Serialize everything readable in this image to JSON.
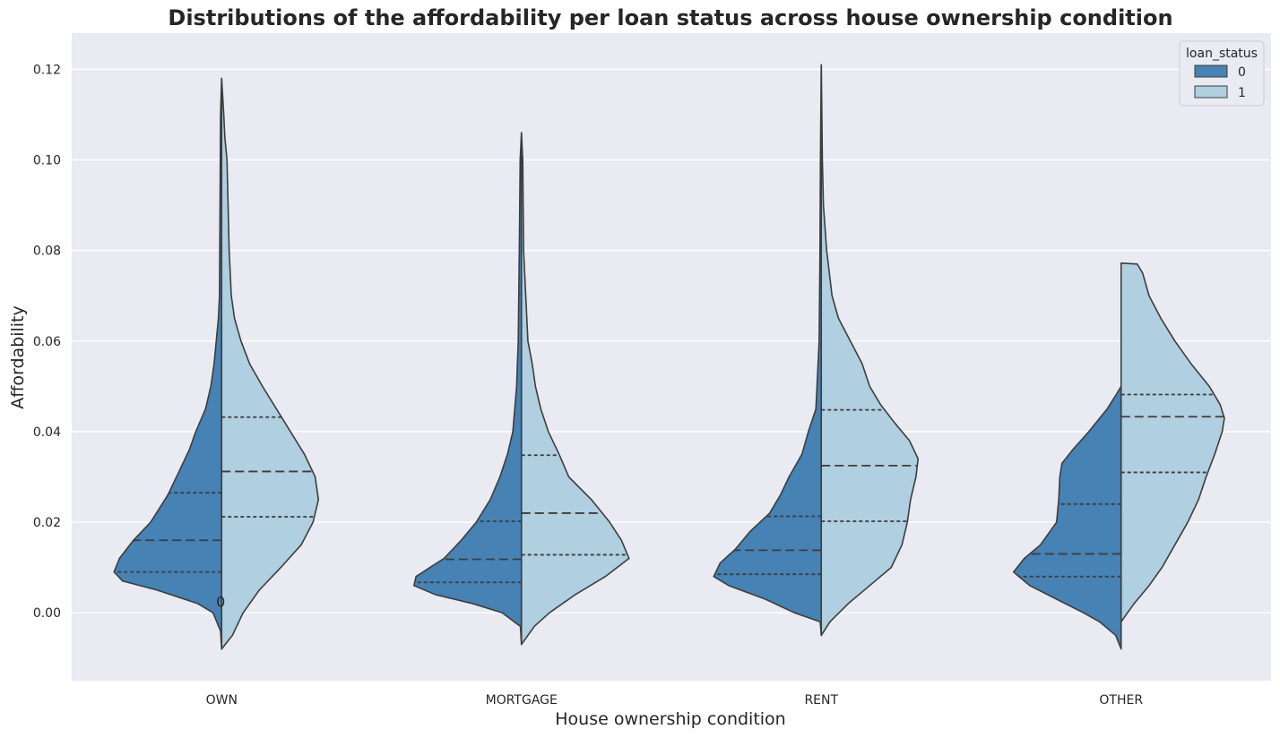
{
  "chart_data": {
    "type": "violin",
    "title": "Distributions of the affordability per loan status across house ownership condition",
    "xlabel": "House ownership condition",
    "ylabel": "Affordability",
    "categories": [
      "OWN",
      "MORTGAGE",
      "RENT",
      "OTHER"
    ],
    "ylim": [
      -0.015,
      0.128
    ],
    "yticks": [
      0.0,
      0.02,
      0.04,
      0.06,
      0.08,
      0.1,
      0.12
    ],
    "ytick_labels": [
      "0.00",
      "0.02",
      "0.04",
      "0.06",
      "0.08",
      "0.10",
      "0.12"
    ],
    "grid": true,
    "legend": {
      "title": "loan_status",
      "position": "top-right",
      "entries": [
        "0",
        "1"
      ]
    },
    "colors": {
      "0": "#4682b4",
      "1": "#b0cfe0",
      "background": "#eaeaf2",
      "grid": "#ffffff",
      "outline": "#3d3d3d"
    },
    "annotations": [
      {
        "text": "0",
        "category": "OWN",
        "y": 0.0025
      }
    ],
    "series": [
      {
        "name": "0",
        "side": "left",
        "groups": [
          {
            "category": "OWN",
            "quartiles": [
              0.009,
              0.016,
              0.0265
            ],
            "profile": [
              [
                -0.008,
                0.0
              ],
              [
                -0.004,
                0.01
              ],
              [
                0.0,
                0.08
              ],
              [
                0.002,
                0.22
              ],
              [
                0.005,
                0.6
              ],
              [
                0.007,
                0.92
              ],
              [
                0.009,
                1.0
              ],
              [
                0.012,
                0.95
              ],
              [
                0.016,
                0.82
              ],
              [
                0.02,
                0.66
              ],
              [
                0.026,
                0.5
              ],
              [
                0.031,
                0.4
              ],
              [
                0.036,
                0.3
              ],
              [
                0.04,
                0.24
              ],
              [
                0.045,
                0.15
              ],
              [
                0.05,
                0.1
              ],
              [
                0.055,
                0.07
              ],
              [
                0.06,
                0.05
              ],
              [
                0.065,
                0.03
              ],
              [
                0.07,
                0.02
              ],
              [
                0.09,
                0.015
              ],
              [
                0.11,
                0.01
              ],
              [
                0.118,
                0.0
              ]
            ]
          },
          {
            "category": "MORTGAGE",
            "quartiles": [
              0.0067,
              0.0118,
              0.0202
            ],
            "profile": [
              [
                -0.007,
                0.0
              ],
              [
                -0.003,
                0.01
              ],
              [
                0.0,
                0.18
              ],
              [
                0.002,
                0.45
              ],
              [
                0.004,
                0.8
              ],
              [
                0.006,
                1.0
              ],
              [
                0.008,
                0.98
              ],
              [
                0.01,
                0.85
              ],
              [
                0.012,
                0.72
              ],
              [
                0.016,
                0.56
              ],
              [
                0.02,
                0.42
              ],
              [
                0.025,
                0.29
              ],
              [
                0.03,
                0.2
              ],
              [
                0.035,
                0.13
              ],
              [
                0.04,
                0.08
              ],
              [
                0.05,
                0.045
              ],
              [
                0.06,
                0.03
              ],
              [
                0.08,
                0.02
              ],
              [
                0.1,
                0.012
              ],
              [
                0.106,
                0.0
              ]
            ]
          },
          {
            "category": "RENT",
            "quartiles": [
              0.0085,
              0.0138,
              0.0213
            ],
            "profile": [
              [
                -0.005,
                0.0
              ],
              [
                -0.002,
                0.01
              ],
              [
                0.0,
                0.25
              ],
              [
                0.003,
                0.52
              ],
              [
                0.006,
                0.86
              ],
              [
                0.008,
                1.0
              ],
              [
                0.011,
                0.94
              ],
              [
                0.014,
                0.8
              ],
              [
                0.018,
                0.66
              ],
              [
                0.022,
                0.48
              ],
              [
                0.026,
                0.38
              ],
              [
                0.03,
                0.3
              ],
              [
                0.035,
                0.18
              ],
              [
                0.04,
                0.12
              ],
              [
                0.045,
                0.05
              ],
              [
                0.06,
                0.02
              ],
              [
                0.08,
                0.012
              ],
              [
                0.1,
                0.008
              ],
              [
                0.121,
                0.0
              ]
            ]
          },
          {
            "category": "OTHER",
            "quartiles": [
              0.008,
              0.013,
              0.024
            ],
            "profile": [
              [
                -0.008,
                0.0
              ],
              [
                -0.005,
                0.05
              ],
              [
                -0.002,
                0.2
              ],
              [
                0.0,
                0.35
              ],
              [
                0.003,
                0.6
              ],
              [
                0.006,
                0.85
              ],
              [
                0.009,
                1.0
              ],
              [
                0.012,
                0.9
              ],
              [
                0.015,
                0.75
              ],
              [
                0.02,
                0.6
              ],
              [
                0.025,
                0.58
              ],
              [
                0.03,
                0.57
              ],
              [
                0.033,
                0.55
              ],
              [
                0.036,
                0.45
              ],
              [
                0.04,
                0.3
              ],
              [
                0.045,
                0.13
              ],
              [
                0.048,
                0.05
              ],
              [
                0.05,
                0.0
              ]
            ]
          }
        ]
      },
      {
        "name": "1",
        "side": "right",
        "groups": [
          {
            "category": "OWN",
            "quartiles": [
              0.0212,
              0.0312,
              0.0432
            ],
            "profile": [
              [
                -0.008,
                0.0
              ],
              [
                -0.005,
                0.1
              ],
              [
                0.0,
                0.2
              ],
              [
                0.005,
                0.35
              ],
              [
                0.01,
                0.55
              ],
              [
                0.015,
                0.74
              ],
              [
                0.02,
                0.85
              ],
              [
                0.025,
                0.9
              ],
              [
                0.03,
                0.87
              ],
              [
                0.035,
                0.77
              ],
              [
                0.04,
                0.64
              ],
              [
                0.045,
                0.51
              ],
              [
                0.05,
                0.38
              ],
              [
                0.055,
                0.26
              ],
              [
                0.06,
                0.18
              ],
              [
                0.065,
                0.12
              ],
              [
                0.07,
                0.09
              ],
              [
                0.08,
                0.07
              ],
              [
                0.09,
                0.06
              ],
              [
                0.1,
                0.05
              ],
              [
                0.105,
                0.03
              ],
              [
                0.11,
                0.02
              ],
              [
                0.118,
                0.0
              ]
            ]
          },
          {
            "category": "MORTGAGE",
            "quartiles": [
              0.0128,
              0.022,
              0.0348
            ],
            "profile": [
              [
                -0.007,
                0.0
              ],
              [
                -0.003,
                0.12
              ],
              [
                0.0,
                0.26
              ],
              [
                0.004,
                0.5
              ],
              [
                0.008,
                0.78
              ],
              [
                0.012,
                1.0
              ],
              [
                0.016,
                0.93
              ],
              [
                0.02,
                0.82
              ],
              [
                0.025,
                0.65
              ],
              [
                0.03,
                0.44
              ],
              [
                0.035,
                0.35
              ],
              [
                0.04,
                0.25
              ],
              [
                0.045,
                0.18
              ],
              [
                0.05,
                0.13
              ],
              [
                0.055,
                0.1
              ],
              [
                0.06,
                0.06
              ],
              [
                0.07,
                0.04
              ],
              [
                0.08,
                0.02
              ],
              [
                0.1,
                0.012
              ],
              [
                0.106,
                0.0
              ]
            ]
          },
          {
            "category": "RENT",
            "quartiles": [
              0.0202,
              0.0325,
              0.0448
            ],
            "profile": [
              [
                -0.005,
                0.0
              ],
              [
                -0.002,
                0.08
              ],
              [
                0.002,
                0.25
              ],
              [
                0.006,
                0.45
              ],
              [
                0.01,
                0.65
              ],
              [
                0.015,
                0.75
              ],
              [
                0.02,
                0.8
              ],
              [
                0.025,
                0.83
              ],
              [
                0.03,
                0.88
              ],
              [
                0.034,
                0.9
              ],
              [
                0.038,
                0.82
              ],
              [
                0.042,
                0.68
              ],
              [
                0.046,
                0.55
              ],
              [
                0.05,
                0.45
              ],
              [
                0.055,
                0.38
              ],
              [
                0.06,
                0.27
              ],
              [
                0.065,
                0.16
              ],
              [
                0.07,
                0.1
              ],
              [
                0.08,
                0.05
              ],
              [
                0.09,
                0.02
              ],
              [
                0.1,
                0.01
              ],
              [
                0.121,
                0.0
              ]
            ]
          },
          {
            "category": "OTHER",
            "quartiles": [
              0.031,
              0.0433,
              0.0482
            ],
            "profile": [
              [
                -0.002,
                0.0
              ],
              [
                0.002,
                0.12
              ],
              [
                0.006,
                0.26
              ],
              [
                0.01,
                0.38
              ],
              [
                0.015,
                0.5
              ],
              [
                0.02,
                0.62
              ],
              [
                0.025,
                0.72
              ],
              [
                0.03,
                0.79
              ],
              [
                0.035,
                0.87
              ],
              [
                0.04,
                0.94
              ],
              [
                0.043,
                0.96
              ],
              [
                0.046,
                0.92
              ],
              [
                0.05,
                0.82
              ],
              [
                0.055,
                0.65
              ],
              [
                0.06,
                0.5
              ],
              [
                0.065,
                0.37
              ],
              [
                0.07,
                0.26
              ],
              [
                0.075,
                0.2
              ],
              [
                0.077,
                0.15
              ],
              [
                0.0772,
                0.0
              ]
            ]
          }
        ]
      }
    ]
  }
}
